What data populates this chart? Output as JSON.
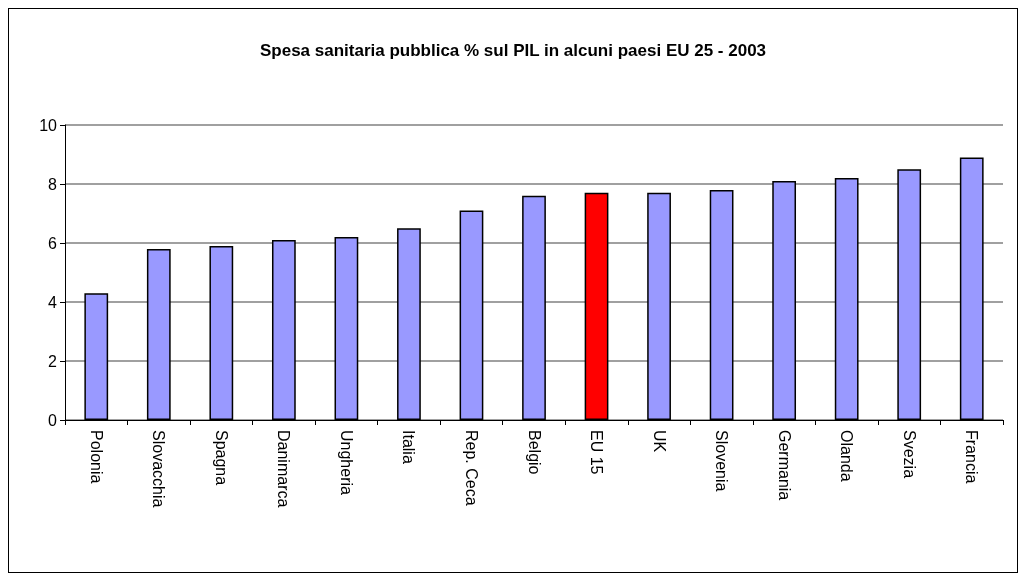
{
  "chart_data": {
    "type": "bar",
    "title": "Spesa sanitaria pubblica % sul PIL in alcuni paesi EU 25 - 2003",
    "categories": [
      "Polonia",
      "Slovacchia",
      "Spagna",
      "Danimarca",
      "Ungheria",
      "Italia",
      "Rep. Ceca",
      "Belgio",
      "EU 15",
      "UK",
      "Slovenia",
      "Germania",
      "Olanda",
      "Svezia",
      "Francia"
    ],
    "values": [
      4.3,
      5.8,
      5.9,
      6.1,
      6.2,
      6.5,
      7.1,
      7.6,
      7.7,
      7.7,
      7.8,
      8.1,
      8.2,
      8.5,
      8.9
    ],
    "colors": [
      "#9999ff",
      "#9999ff",
      "#9999ff",
      "#9999ff",
      "#9999ff",
      "#9999ff",
      "#9999ff",
      "#9999ff",
      "#ff0000",
      "#9999ff",
      "#9999ff",
      "#9999ff",
      "#9999ff",
      "#9999ff",
      "#9999ff"
    ],
    "ylim": [
      0,
      10
    ],
    "yticks": [
      0,
      2,
      4,
      6,
      8,
      10
    ],
    "grid": "y"
  }
}
